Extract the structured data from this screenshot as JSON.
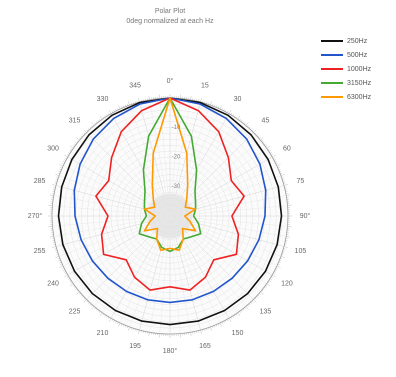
{
  "chart_data": {
    "type": "line",
    "subtype": "polar",
    "title": "Polar Plot",
    "subtitle": "0deg normalized at each Hz",
    "angle_ticks": [
      "0°",
      "15",
      "30",
      "45",
      "60",
      "75",
      "90°",
      "105",
      "120",
      "135",
      "150",
      "165",
      "180°",
      "195",
      "210",
      "225",
      "240",
      "255",
      "270°",
      "285",
      "300",
      "315",
      "330",
      "345"
    ],
    "radial_ticks": [
      "-10",
      "-20",
      "-30"
    ],
    "radial_tick_values": [
      -10,
      -20,
      -30
    ],
    "rlim": [
      -40,
      0
    ],
    "angle_direction": "clockwise",
    "zero_at": "top",
    "grid": true,
    "legend_position": "top-right",
    "angles": [
      0,
      15,
      30,
      45,
      60,
      75,
      90,
      105,
      120,
      135,
      150,
      165,
      180,
      195,
      210,
      225,
      240,
      255,
      270,
      285,
      300,
      315,
      330,
      345
    ],
    "series": [
      {
        "name": "250Hz",
        "color": "#111111",
        "values": [
          0,
          -0.2,
          -0.6,
          -1.1,
          -1.6,
          -2.0,
          -2.2,
          -2.4,
          -2.6,
          -2.8,
          -3.0,
          -3.1,
          -3.2,
          -3.1,
          -3.0,
          -2.8,
          -2.6,
          -2.4,
          -2.2,
          -2.0,
          -1.6,
          -1.1,
          -0.6,
          -0.2
        ]
      },
      {
        "name": "500Hz",
        "color": "#2255cc",
        "values": [
          0,
          -0.7,
          -1.8,
          -3.2,
          -4.8,
          -6.4,
          -7.8,
          -8.8,
          -9.6,
          -10.2,
          -10.5,
          -10.6,
          -10.7,
          -10.6,
          -10.5,
          -10.2,
          -9.6,
          -8.8,
          -7.8,
          -6.4,
          -4.8,
          -3.2,
          -1.8,
          -0.7
        ]
      },
      {
        "name": "1000Hz",
        "color": "#ee2222",
        "values": [
          0,
          -3,
          -7,
          -12,
          -16,
          -14,
          -19,
          -16,
          -14,
          -19,
          -16,
          -14,
          -16,
          -14,
          -16,
          -19,
          -14,
          -16,
          -19,
          -14,
          -16,
          -12,
          -7,
          -3
        ]
      },
      {
        "name": "3150Hz",
        "color": "#44aa33",
        "values": [
          0,
          -12,
          -22,
          -28,
          -30,
          -31,
          -32,
          -30,
          -28,
          -30,
          -31,
          -29,
          -28,
          -29,
          -31,
          -30,
          -28,
          -30,
          -32,
          -31,
          -30,
          -28,
          -22,
          -12
        ]
      },
      {
        "name": "6300Hz",
        "color": "#ff9900",
        "values": [
          0,
          -18,
          -28,
          -32,
          -34,
          -31,
          -35,
          -33,
          -30,
          -34,
          -31,
          -28,
          -29,
          -28,
          -31,
          -34,
          -30,
          -33,
          -35,
          -31,
          -34,
          -32,
          -28,
          -18
        ]
      }
    ]
  }
}
